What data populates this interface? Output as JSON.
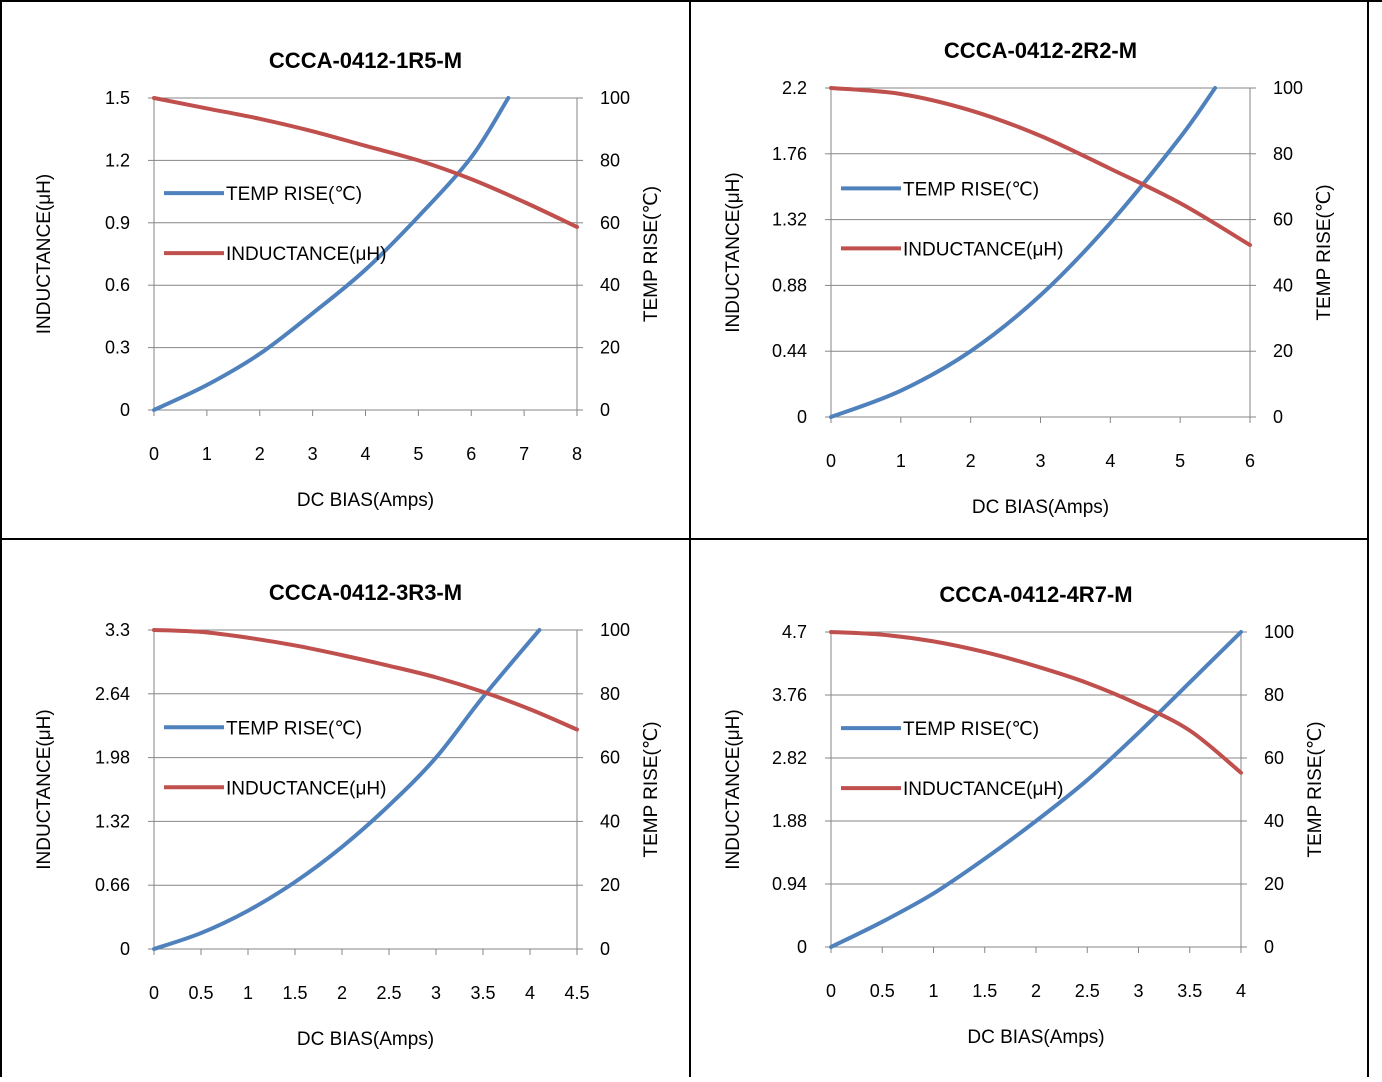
{
  "colors": {
    "temp": "#4f81bd",
    "inductance": "#c0504d",
    "grid": "#868686",
    "frame": "#000000"
  },
  "chart_data": [
    {
      "type": "line",
      "title": "CCCA-0412-1R5-M",
      "xlabel": "DC  BIAS(Amps)",
      "ylabel": "INDUCTANCE(μH)",
      "y2label": "TEMP RISE(℃)",
      "xlim": [
        0,
        8
      ],
      "ylim": [
        0,
        1.5
      ],
      "y2lim": [
        0,
        100
      ],
      "x_ticks": [
        "0",
        "1",
        "2",
        "3",
        "4",
        "5",
        "6",
        "7",
        "8"
      ],
      "y_ticks": [
        "0",
        "0.3",
        "0.6",
        "0.9",
        "1.2",
        "1.5"
      ],
      "y2_ticks": [
        "0",
        "20",
        "40",
        "60",
        "80",
        "100"
      ],
      "legend": "left",
      "series": [
        {
          "name": "TEMP RISE(℃)",
          "axis": "y2",
          "x": [
            0,
            1,
            2,
            3,
            4,
            5,
            6,
            6.7
          ],
          "y": [
            0,
            8,
            18,
            31,
            45,
            62,
            81,
            100
          ]
        },
        {
          "name": "INDUCTANCE(μH)",
          "axis": "y",
          "x": [
            0,
            1,
            2,
            3,
            4,
            5,
            6,
            7,
            8
          ],
          "y": [
            1.5,
            1.45,
            1.4,
            1.34,
            1.27,
            1.2,
            1.11,
            1.0,
            0.88
          ]
        }
      ]
    },
    {
      "type": "line",
      "title": "CCCA-0412-2R2-M",
      "xlabel": "DC  BIAS(Amps)",
      "ylabel": "INDUCTANCE(μH)",
      "y2label": "TEMP RISE(℃)",
      "xlim": [
        0,
        6
      ],
      "ylim": [
        0,
        2.2
      ],
      "y2lim": [
        0,
        100
      ],
      "x_ticks": [
        "0",
        "1",
        "2",
        "3",
        "4",
        "5",
        "6"
      ],
      "y_ticks": [
        "0",
        "0.44",
        "0.88",
        "1.32",
        "1.76",
        "2.2"
      ],
      "y2_ticks": [
        "0",
        "20",
        "40",
        "60",
        "80",
        "100"
      ],
      "legend": "left",
      "series": [
        {
          "name": "TEMP RISE(℃)",
          "axis": "y2",
          "x": [
            0,
            1,
            2,
            3,
            4,
            5,
            5.5
          ],
          "y": [
            0,
            8,
            20,
            37,
            59,
            85,
            100
          ]
        },
        {
          "name": "INDUCTANCE(μH)",
          "axis": "y",
          "x": [
            0,
            1,
            2,
            3,
            4,
            5,
            6
          ],
          "y": [
            2.2,
            2.16,
            2.05,
            1.88,
            1.66,
            1.43,
            1.15
          ]
        }
      ]
    },
    {
      "type": "line",
      "title": "CCCA-0412-3R3-M",
      "xlabel": "DC  BIAS(Amps)",
      "ylabel": "INDUCTANCE(μH)",
      "y2label": "TEMP RISE(℃)",
      "xlim": [
        0,
        4.5
      ],
      "ylim": [
        0,
        3.3
      ],
      "y2lim": [
        0,
        100
      ],
      "x_ticks": [
        "0",
        "0.5",
        "1",
        "1.5",
        "2",
        "2.5",
        "3",
        "3.5",
        "4",
        "4.5"
      ],
      "y_ticks": [
        "0",
        "0.66",
        "1.32",
        "1.98",
        "2.64",
        "3.3"
      ],
      "y2_ticks": [
        "0",
        "20",
        "40",
        "60",
        "80",
        "100"
      ],
      "legend": "left",
      "series": [
        {
          "name": "TEMP RISE(℃)",
          "axis": "y2",
          "x": [
            0,
            0.5,
            1,
            1.5,
            2,
            2.5,
            3,
            3.5,
            4.1
          ],
          "y": [
            0,
            5,
            12,
            21,
            32,
            45,
            60,
            79,
            100
          ]
        },
        {
          "name": "INDUCTANCE(μH)",
          "axis": "y",
          "x": [
            0,
            0.5,
            1,
            1.5,
            2,
            2.5,
            3,
            3.5,
            4,
            4.5
          ],
          "y": [
            3.3,
            3.28,
            3.22,
            3.14,
            3.04,
            2.93,
            2.81,
            2.66,
            2.48,
            2.27
          ]
        }
      ]
    },
    {
      "type": "line",
      "title": "CCCA-0412-4R7-M",
      "xlabel": "DC  BIAS(Amps)",
      "ylabel": "INDUCTANCE(μH)",
      "y2label": "TEMP RISE(℃)",
      "xlim": [
        0,
        4
      ],
      "ylim": [
        0,
        4.7
      ],
      "y2lim": [
        0,
        100
      ],
      "x_ticks": [
        "0",
        "0.5",
        "1",
        "1.5",
        "2",
        "2.5",
        "3",
        "3.5",
        "4"
      ],
      "y_ticks": [
        "0",
        "0.94",
        "1.88",
        "2.82",
        "3.76",
        "4.7"
      ],
      "y2_ticks": [
        "0",
        "20",
        "40",
        "60",
        "80",
        "100"
      ],
      "legend": "left",
      "series": [
        {
          "name": "TEMP RISE(℃)",
          "axis": "y2",
          "x": [
            0,
            0.5,
            1,
            1.5,
            2,
            2.5,
            3,
            3.5,
            4
          ],
          "y": [
            0,
            8,
            17,
            28,
            40,
            53,
            68,
            84,
            100
          ]
        },
        {
          "name": "INDUCTANCE(μH)",
          "axis": "y",
          "x": [
            0,
            0.5,
            1,
            1.5,
            2,
            2.5,
            3,
            3.5,
            4
          ],
          "y": [
            4.7,
            4.66,
            4.56,
            4.4,
            4.19,
            3.94,
            3.62,
            3.23,
            2.6
          ]
        }
      ]
    }
  ]
}
